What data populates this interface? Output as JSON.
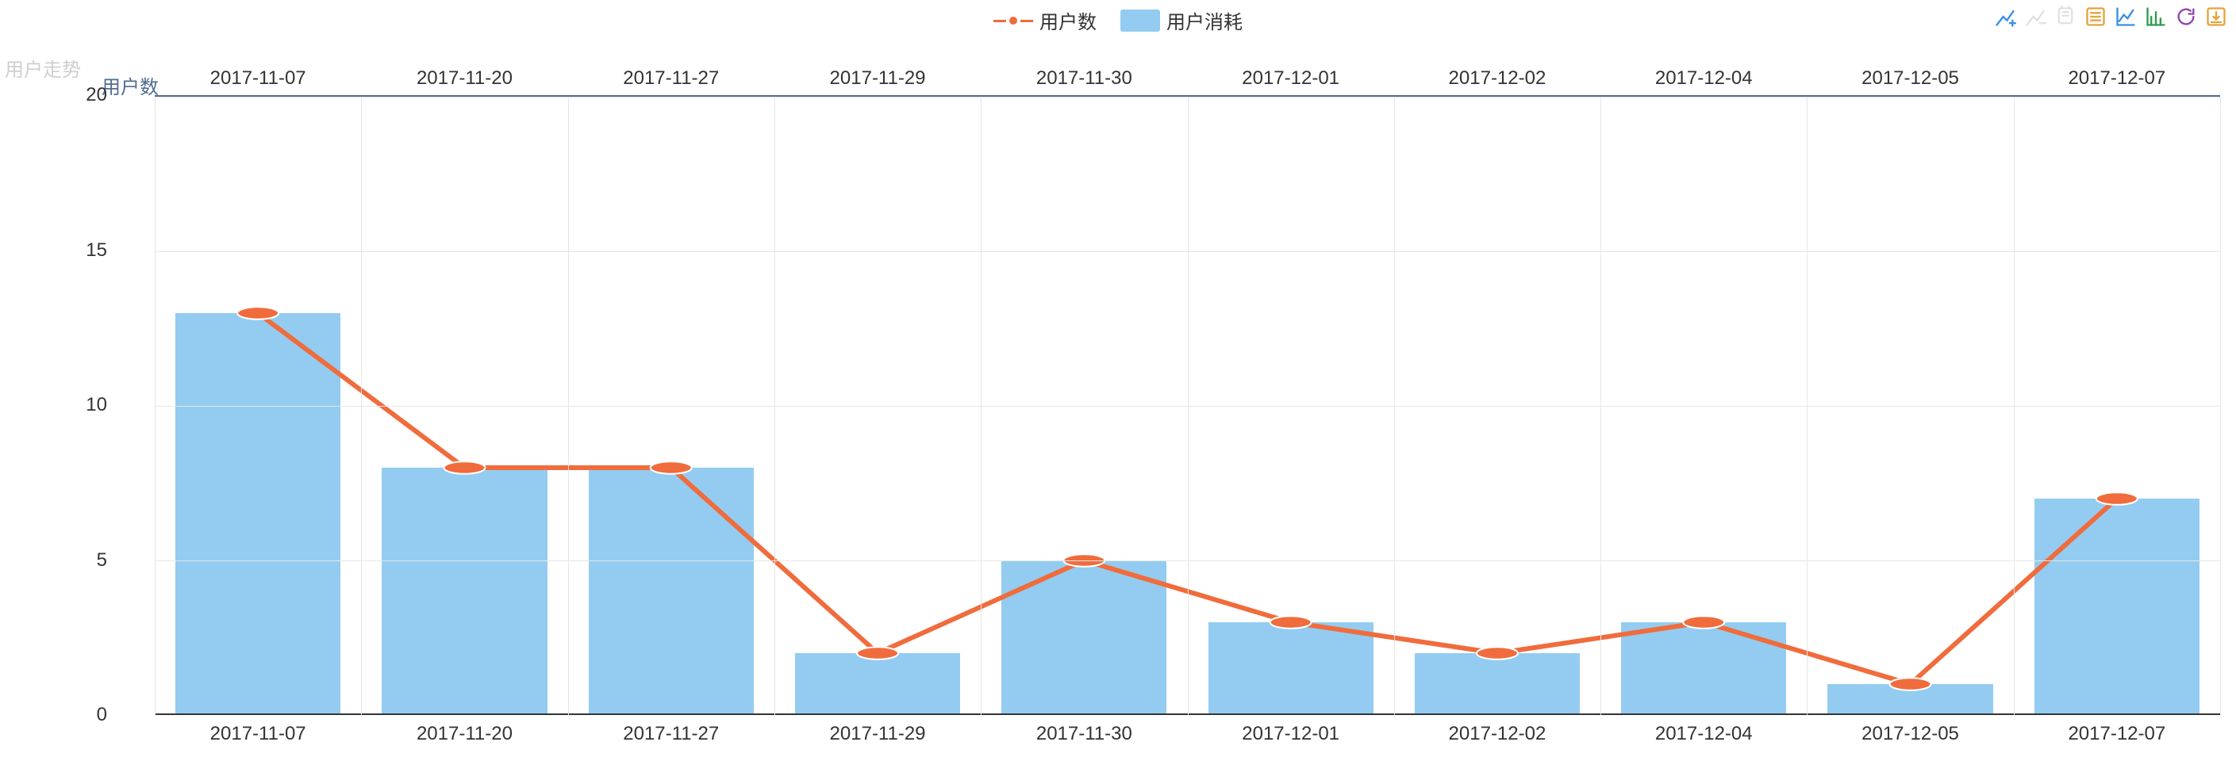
{
  "side_label": "用户走势",
  "legend": {
    "series_line_label": "用户数",
    "series_bar_label": "用户消耗"
  },
  "toolbox": {
    "zoom_in": "区域缩放",
    "zoom_reset": "区域缩放还原",
    "restore_view": "还原",
    "data_view": "数据视图",
    "line_view": "切换为折线图",
    "bar_view": "切换为柱状图",
    "refresh": "刷新",
    "save_image": "保存为图片"
  },
  "chart": {
    "type": "combo-bar-line",
    "y_axis_title": "用户数",
    "y_axis_title_color": "#516b91",
    "categories": [
      "2017-11-07",
      "2017-11-20",
      "2017-11-27",
      "2017-11-29",
      "2017-11-30",
      "2017-12-01",
      "2017-12-02",
      "2017-12-04",
      "2017-12-05",
      "2017-12-07"
    ],
    "bar_values": [
      13,
      8,
      8,
      2,
      5,
      3,
      2,
      3,
      1,
      7
    ],
    "line_values": [
      13,
      8,
      8,
      2,
      5,
      3,
      2,
      3,
      1,
      7
    ],
    "bar_color": "#93ccf0",
    "line_color": "#f06c3c",
    "line_width": 3,
    "marker_radius": 5,
    "marker_fill": "#f06c3c",
    "marker_stroke": "#ffffff",
    "ylim": [
      0,
      20
    ],
    "ytick_step": 5,
    "bar_width_ratio": 0.8,
    "grid_color": "#e6e6e6",
    "top_border_color": "#516b91",
    "axis_color": "#333333",
    "background_color": "#ffffff",
    "tick_fontsize": 24,
    "label_fontsize": 24
  },
  "colors": {
    "tool_blue": "#3a8ee6",
    "tool_orange": "#e6a23c",
    "tool_green": "#2e9c4a",
    "tool_purple": "#8e44ad",
    "tool_gray": "#c0c4cc"
  }
}
